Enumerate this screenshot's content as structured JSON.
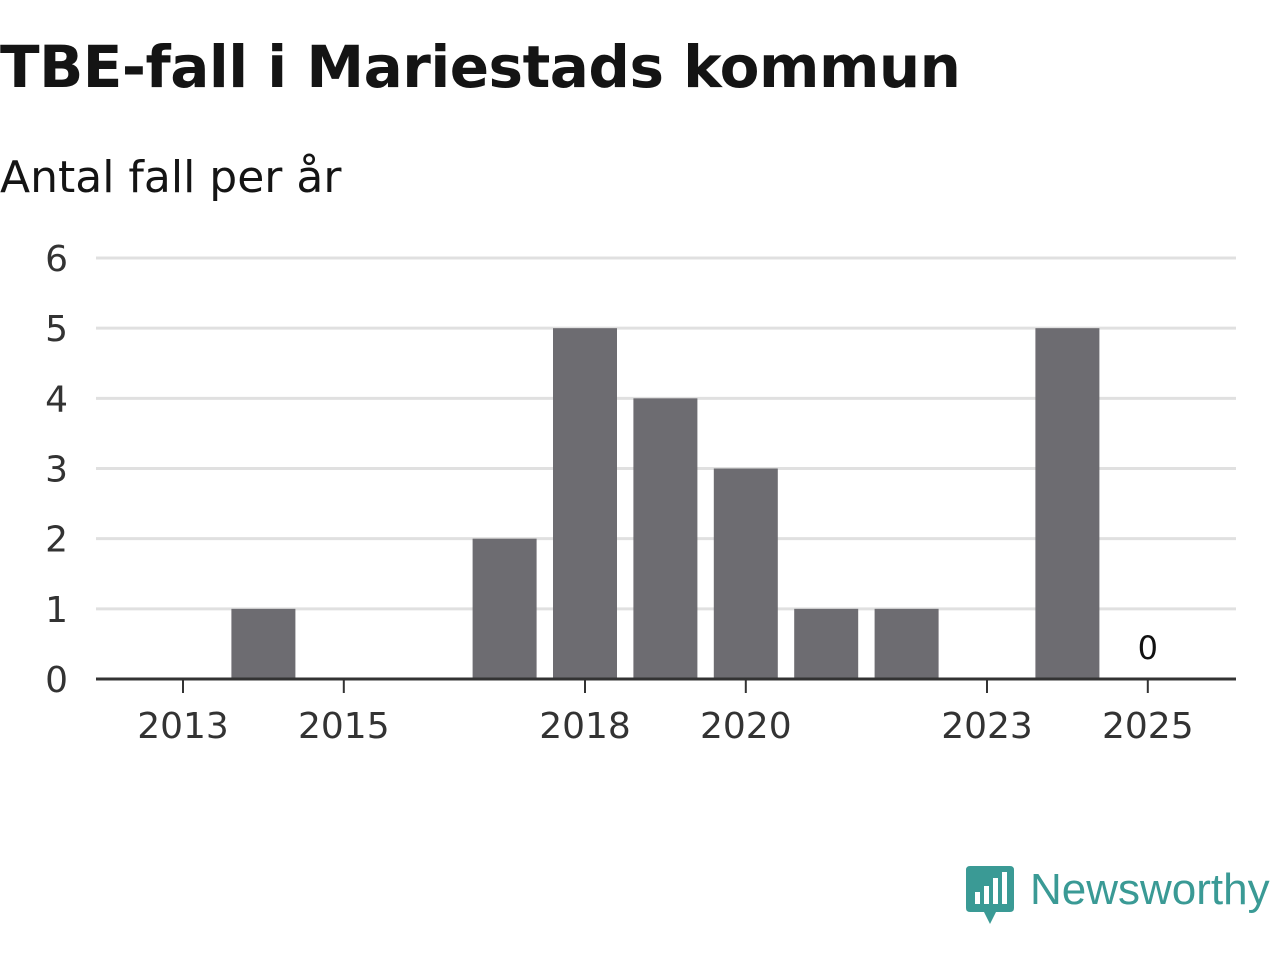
{
  "header": {
    "title": "TBE-fall i Mariestads kommun",
    "subtitle": "Antal fall per år"
  },
  "branding": {
    "name": "Newsworthy",
    "color": "#3a9a95"
  },
  "colors": {
    "bar": "#6d6c71",
    "grid": "#e0e0e0",
    "axis": "#333333",
    "text": "#333333"
  },
  "chart_data": {
    "type": "bar",
    "title": "TBE-fall i Mariestads kommun",
    "subtitle": "Antal fall per år",
    "xlabel": "",
    "ylabel": "",
    "categories": [
      "2013",
      "2014",
      "2015",
      "2016",
      "2017",
      "2018",
      "2019",
      "2020",
      "2021",
      "2022",
      "2023",
      "2024",
      "2025"
    ],
    "values": [
      0,
      1,
      0,
      0,
      2,
      5,
      4,
      3,
      1,
      1,
      0,
      5,
      0
    ],
    "x_tick_labels": [
      "2013",
      "2015",
      "2018",
      "2020",
      "2023",
      "2025"
    ],
    "y_ticks": [
      0,
      1,
      2,
      3,
      4,
      5,
      6
    ],
    "ylim": [
      0,
      6
    ],
    "grid": true,
    "annotations": [
      {
        "category": "2025",
        "text": "0"
      }
    ]
  }
}
